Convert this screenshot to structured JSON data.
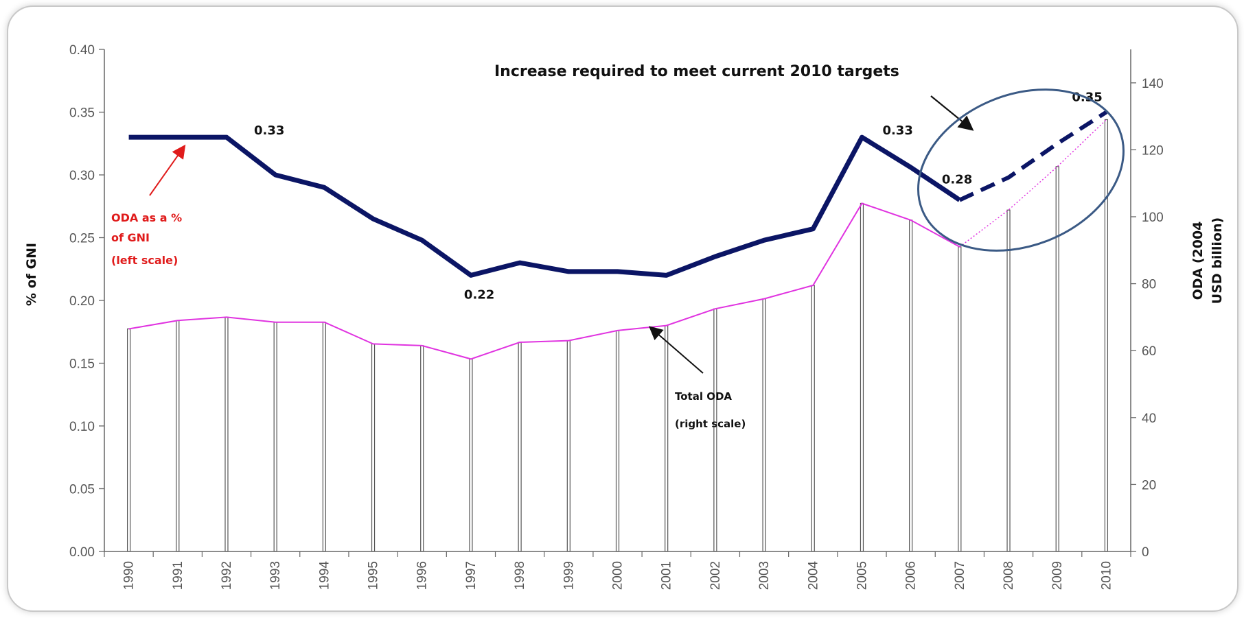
{
  "chart_data": {
    "type": "bar+line",
    "categories": [
      "1990",
      "1991",
      "1992",
      "1993",
      "1994",
      "1995",
      "1996",
      "1997",
      "1998",
      "1999",
      "2000",
      "2001",
      "2002",
      "2003",
      "2004",
      "2005",
      "2006",
      "2007",
      "2008",
      "2009",
      "2010"
    ],
    "series": [
      {
        "name": "ODA as a % of GNI",
        "axis": "left",
        "values": [
          0.33,
          0.33,
          0.33,
          0.3,
          0.29,
          0.265,
          0.248,
          0.22,
          0.23,
          0.223,
          0.223,
          0.22,
          0.235,
          0.248,
          0.257,
          0.33,
          0.306,
          0.28,
          0.298,
          0.325,
          0.35
        ],
        "projected_from": "2007",
        "color": "#0b1565"
      },
      {
        "name": "Total ODA",
        "axis": "right",
        "chart_kind": "bar+line",
        "values": [
          66.5,
          69,
          70,
          68.5,
          68.5,
          62,
          61.5,
          57.5,
          62.5,
          63,
          66,
          67.5,
          72.5,
          75.5,
          79.5,
          104,
          99,
          91,
          102,
          115,
          129
        ],
        "line_color": "#e033e0",
        "bar_color": "#ffffff"
      }
    ],
    "y_left": {
      "label": "% of GNI",
      "ticks": [
        "0.00",
        "0.05",
        "0.10",
        "0.15",
        "0.20",
        "0.25",
        "0.30",
        "0.35",
        "0.40"
      ],
      "range": [
        0,
        0.4
      ]
    },
    "y_right": {
      "label_lines": [
        "ODA (2004",
        "USD billion)"
      ],
      "ticks": [
        "0",
        "20",
        "40",
        "60",
        "80",
        "100",
        "120",
        "140"
      ],
      "range": [
        0,
        150
      ]
    },
    "data_labels": [
      {
        "category": "1992",
        "text": "0.33"
      },
      {
        "category": "1997",
        "text": "0.22"
      },
      {
        "category": "2005",
        "text": "0.33"
      },
      {
        "category": "2007",
        "text": "0.28"
      },
      {
        "category": "2010",
        "text": "0.35"
      }
    ],
    "annotations": {
      "target_note": "Increase required to meet current 2010 targets",
      "left_scale_note": [
        "ODA as a %",
        "of GNI",
        "(left scale)"
      ],
      "right_scale_note": [
        "Total ODA",
        "(right scale)"
      ]
    },
    "colors": {
      "left_line": "#0b1565",
      "right_line": "#e033e0",
      "left_note": "#e01b1b",
      "ellipse": "#3b5a85"
    }
  }
}
